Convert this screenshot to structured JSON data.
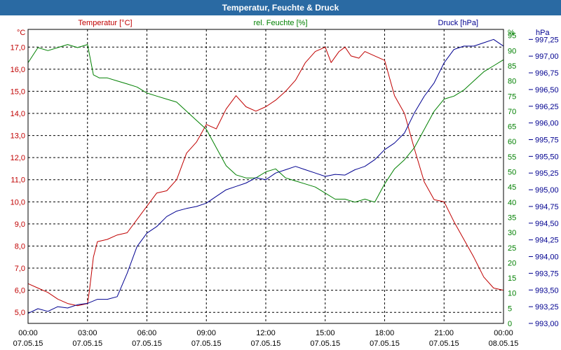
{
  "window": {
    "title": "Temperatur, Feuchte & Druck"
  },
  "chart_data": {
    "type": "line",
    "title": "Temperatur, Feuchte & Druck",
    "grid": true,
    "x_ticks": [
      {
        "t": 0,
        "time": "00:00",
        "date": "07.05.15"
      },
      {
        "t": 3,
        "time": "03:00",
        "date": "07.05.15"
      },
      {
        "t": 6,
        "time": "06:00",
        "date": "07.05.15"
      },
      {
        "t": 9,
        "time": "09:00",
        "date": "07.05.15"
      },
      {
        "t": 12,
        "time": "12:00",
        "date": "07.05.15"
      },
      {
        "t": 15,
        "time": "15:00",
        "date": "07.05.15"
      },
      {
        "t": 18,
        "time": "18:00",
        "date": "07.05.15"
      },
      {
        "t": 21,
        "time": "21:00",
        "date": "07.05.15"
      },
      {
        "t": 24,
        "time": "00:00",
        "date": "08.05.15"
      }
    ],
    "x_range": [
      0,
      24
    ],
    "axes": {
      "temperature": {
        "label": "Temperatur [°C]",
        "unit": "°C",
        "color": "#c00000",
        "range": [
          4.5,
          17.8
        ],
        "ticks": [
          "5,0",
          "6,0",
          "7,0",
          "8,0",
          "9,0",
          "10,0",
          "11,0",
          "12,0",
          "13,0",
          "14,0",
          "15,0",
          "16,0",
          "17,0"
        ],
        "tick_values": [
          5,
          6,
          7,
          8,
          9,
          10,
          11,
          12,
          13,
          14,
          15,
          16,
          17
        ]
      },
      "humidity": {
        "label": "rel. Feuchte [%]",
        "unit": "%",
        "color": "#008000",
        "range": [
          0,
          97
        ],
        "ticks": [
          "0",
          "5",
          "10",
          "15",
          "20",
          "25",
          "30",
          "35",
          "40",
          "45",
          "50",
          "55",
          "60",
          "65",
          "70",
          "75",
          "80",
          "85",
          "90",
          "95"
        ],
        "tick_values": [
          0,
          5,
          10,
          15,
          20,
          25,
          30,
          35,
          40,
          45,
          50,
          55,
          60,
          65,
          70,
          75,
          80,
          85,
          90,
          95
        ]
      },
      "pressure": {
        "label": "Druck [hPa]",
        "unit": "hPa",
        "color": "#000090",
        "range": [
          993.0,
          997.4
        ],
        "ticks": [
          "993,00",
          "993,25",
          "993,50",
          "993,75",
          "994,00",
          "994,25",
          "994,50",
          "994,75",
          "995,00",
          "995,25",
          "995,50",
          "995,75",
          "996,00",
          "996,25",
          "996,50",
          "996,75",
          "997,00",
          "997,25"
        ],
        "tick_values": [
          993.0,
          993.25,
          993.5,
          993.75,
          994.0,
          994.25,
          994.5,
          994.75,
          995.0,
          995.25,
          995.5,
          995.75,
          996.0,
          996.25,
          996.5,
          996.75,
          997.0,
          997.25
        ]
      }
    },
    "series": [
      {
        "name": "Temperatur [°C]",
        "axis": "temperature",
        "color": "#c00000",
        "x": [
          0,
          0.5,
          1,
          1.5,
          2,
          2.5,
          3,
          3.1,
          3.3,
          3.5,
          4,
          4.5,
          5,
          5.5,
          6,
          6.5,
          7,
          7.5,
          8,
          8.5,
          9,
          9.5,
          10,
          10.5,
          11,
          11.5,
          12,
          12.5,
          13,
          13.5,
          14,
          14.5,
          15,
          15.3,
          15.7,
          16,
          16.3,
          16.7,
          17,
          17.5,
          18,
          18.5,
          19,
          19.5,
          20,
          20.5,
          21,
          21.5,
          22,
          22.5,
          23,
          23.5,
          24
        ],
        "values": [
          6.3,
          6.1,
          5.9,
          5.6,
          5.4,
          5.3,
          5.4,
          6.0,
          7.5,
          8.2,
          8.3,
          8.5,
          8.6,
          9.2,
          9.8,
          10.4,
          10.5,
          11.0,
          12.2,
          12.7,
          13.5,
          13.3,
          14.2,
          14.8,
          14.3,
          14.1,
          14.3,
          14.6,
          15.0,
          15.5,
          16.3,
          16.8,
          17.0,
          16.3,
          16.8,
          17.0,
          16.6,
          16.5,
          16.8,
          16.6,
          16.4,
          14.8,
          14.0,
          12.4,
          10.9,
          10.1,
          10.0,
          9.1,
          8.3,
          7.5,
          6.6,
          6.1,
          6.0
        ]
      },
      {
        "name": "rel. Feuchte [%]",
        "axis": "humidity",
        "color": "#008000",
        "x": [
          0,
          0.5,
          1,
          1.5,
          2,
          2.5,
          3,
          3.3,
          3.6,
          4,
          4.5,
          5,
          5.5,
          6,
          6.5,
          7,
          7.5,
          8,
          8.5,
          9,
          9.5,
          10,
          10.5,
          11,
          11.5,
          12,
          12.5,
          13,
          13.5,
          14,
          14.5,
          15,
          15.5,
          16,
          16.5,
          17,
          17.5,
          18,
          18.5,
          19,
          19.5,
          20,
          20.5,
          21,
          21.5,
          22,
          22.5,
          23,
          23.5,
          24
        ],
        "values": [
          86,
          91,
          90,
          91,
          92,
          91,
          92,
          82,
          81,
          81,
          80,
          79,
          78,
          76,
          75,
          74,
          73,
          70,
          67,
          64,
          58,
          52,
          49,
          48,
          48,
          50,
          51,
          48,
          47,
          46,
          45,
          43,
          41,
          41,
          40,
          41,
          40,
          46,
          51,
          54,
          58,
          64,
          70,
          74,
          75,
          77,
          80,
          83,
          85,
          87
        ]
      },
      {
        "name": "Druck [hPa]",
        "axis": "pressure",
        "color": "#000090",
        "x": [
          0,
          0.5,
          1,
          1.5,
          2,
          2.5,
          3,
          3.5,
          4,
          4.5,
          5,
          5.5,
          6,
          6.5,
          7,
          7.5,
          8,
          8.5,
          9,
          9.5,
          10,
          10.5,
          11,
          11.5,
          12,
          12.5,
          13,
          13.5,
          14,
          14.5,
          15,
          15.5,
          16,
          16.5,
          17,
          17.5,
          18,
          18.5,
          19,
          19.5,
          20,
          20.5,
          21,
          21.5,
          22,
          22.5,
          23,
          23.5,
          24
        ],
        "values": [
          993.15,
          993.22,
          993.18,
          993.25,
          993.23,
          993.28,
          993.3,
          993.36,
          993.36,
          993.4,
          993.75,
          994.15,
          994.35,
          994.45,
          994.6,
          994.68,
          994.72,
          994.75,
          994.8,
          994.9,
          995.0,
          995.05,
          995.1,
          995.18,
          995.15,
          995.25,
          995.3,
          995.35,
          995.3,
          995.25,
          995.2,
          995.23,
          995.22,
          995.3,
          995.35,
          995.45,
          995.6,
          995.7,
          995.85,
          996.15,
          996.4,
          996.6,
          996.9,
          997.1,
          997.15,
          997.15,
          997.2,
          997.25,
          997.15
        ]
      }
    ]
  }
}
